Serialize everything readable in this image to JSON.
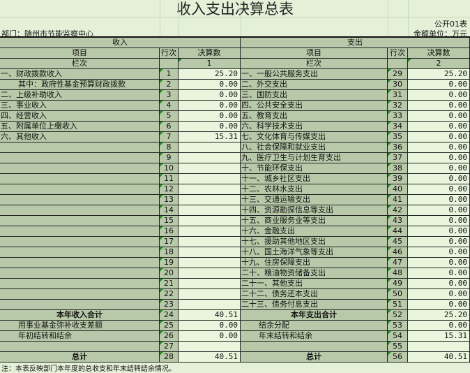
{
  "title": "收入支出决算总表",
  "form_no": "公开01表",
  "department": "部门：随州市节能监察中心",
  "unit": "金额单位：万元",
  "income_header": "收入",
  "expense_header": "支出",
  "col_item": "项目",
  "col_row": "行次",
  "col_amount": "决算数",
  "col_index_label": "栏次",
  "income_col_index": "1",
  "expense_col_index": "2",
  "income_rows": [
    {
      "label": "一、财政拨款收入",
      "no": "1",
      "value": "25.20"
    },
    {
      "label": "其中：政府性基金预算财政拨款",
      "no": "2",
      "value": "0.00",
      "indent": true
    },
    {
      "label": "二、上级补助收入",
      "no": "3",
      "value": "0.00"
    },
    {
      "label": "三、事业收入",
      "no": "4",
      "value": "0.00"
    },
    {
      "label": "四、经营收入",
      "no": "5",
      "value": "0.00"
    },
    {
      "label": "五、附属单位上缴收入",
      "no": "6",
      "value": "0.00"
    },
    {
      "label": "六、其他收入",
      "no": "7",
      "value": "15.31"
    },
    {
      "label": "",
      "no": "8",
      "value": ""
    },
    {
      "label": "",
      "no": "9",
      "value": ""
    },
    {
      "label": "",
      "no": "10",
      "value": ""
    },
    {
      "label": "",
      "no": "11",
      "value": ""
    },
    {
      "label": "",
      "no": "12",
      "value": ""
    },
    {
      "label": "",
      "no": "13",
      "value": ""
    },
    {
      "label": "",
      "no": "14",
      "value": ""
    },
    {
      "label": "",
      "no": "15",
      "value": ""
    },
    {
      "label": "",
      "no": "16",
      "value": ""
    },
    {
      "label": "",
      "no": "17",
      "value": ""
    },
    {
      "label": "",
      "no": "18",
      "value": ""
    },
    {
      "label": "",
      "no": "19",
      "value": ""
    },
    {
      "label": "",
      "no": "20",
      "value": ""
    },
    {
      "label": "",
      "no": "21",
      "value": ""
    },
    {
      "label": "",
      "no": "22",
      "value": ""
    },
    {
      "label": "",
      "no": "23",
      "value": ""
    },
    {
      "label": "本年收入合计",
      "no": "24",
      "value": "40.51",
      "bold": true
    },
    {
      "label": "用事业基金弥补收支差额",
      "no": "25",
      "value": "0.00",
      "indent": true
    },
    {
      "label": "年初结转和结余",
      "no": "26",
      "value": "0.00",
      "indent": true
    },
    {
      "label": "",
      "no": "27",
      "value": ""
    },
    {
      "label": "总计",
      "no": "28",
      "value": "40.51",
      "bold": true
    }
  ],
  "expense_rows": [
    {
      "label": "一、一般公共服务支出",
      "no": "29",
      "value": "25.20"
    },
    {
      "label": "二、外交支出",
      "no": "30",
      "value": "0.00"
    },
    {
      "label": "三、国防支出",
      "no": "31",
      "value": "0.00"
    },
    {
      "label": "四、公共安全支出",
      "no": "32",
      "value": "0.00"
    },
    {
      "label": "五、教育支出",
      "no": "33",
      "value": "0.00"
    },
    {
      "label": "六、科学技术支出",
      "no": "34",
      "value": "0.00"
    },
    {
      "label": "七、文化体育与传媒支出",
      "no": "35",
      "value": "0.00"
    },
    {
      "label": "八、社会保障和就业支出",
      "no": "36",
      "value": "0.00"
    },
    {
      "label": "九、医疗卫生与计划生育支出",
      "no": "37",
      "value": "0.00"
    },
    {
      "label": "十、节能环保支出",
      "no": "38",
      "value": "0.00"
    },
    {
      "label": "十一、城乡社区支出",
      "no": "39",
      "value": "0.00"
    },
    {
      "label": "十二、农林水支出",
      "no": "40",
      "value": "0.00"
    },
    {
      "label": "十三、交通运输支出",
      "no": "41",
      "value": "0.00"
    },
    {
      "label": "十四、资源勘探信息等支出",
      "no": "42",
      "value": "0.00"
    },
    {
      "label": "十五、商业服务业等支出",
      "no": "43",
      "value": "0.00"
    },
    {
      "label": "十六、金融支出",
      "no": "44",
      "value": "0.00"
    },
    {
      "label": "十七、援助其他地区支出",
      "no": "45",
      "value": "0.00"
    },
    {
      "label": "十八、国土海洋气象等支出",
      "no": "46",
      "value": "0.00"
    },
    {
      "label": "十九、住房保障支出",
      "no": "47",
      "value": "0.00"
    },
    {
      "label": "二十、粮油物资储备支出",
      "no": "48",
      "value": "0.00"
    },
    {
      "label": "二十一、其他支出",
      "no": "49",
      "value": "0.00"
    },
    {
      "label": "二十二、债务还本支出",
      "no": "50",
      "value": "0.00"
    },
    {
      "label": "二十三、债务付息支出",
      "no": "51",
      "value": "0.00"
    },
    {
      "label": "本年支出合计",
      "no": "52",
      "value": "25.20",
      "bold": true
    },
    {
      "label": "结余分配",
      "no": "53",
      "value": "0.00",
      "indent": true
    },
    {
      "label": "年末结转和结余",
      "no": "54",
      "value": "15.31",
      "indent": true
    },
    {
      "label": "",
      "no": "55",
      "value": ""
    },
    {
      "label": "总计",
      "no": "56",
      "value": "40.51",
      "bold": true
    }
  ],
  "note": "注：本表反映部门本年度的总收支和年末结转结余情况。"
}
